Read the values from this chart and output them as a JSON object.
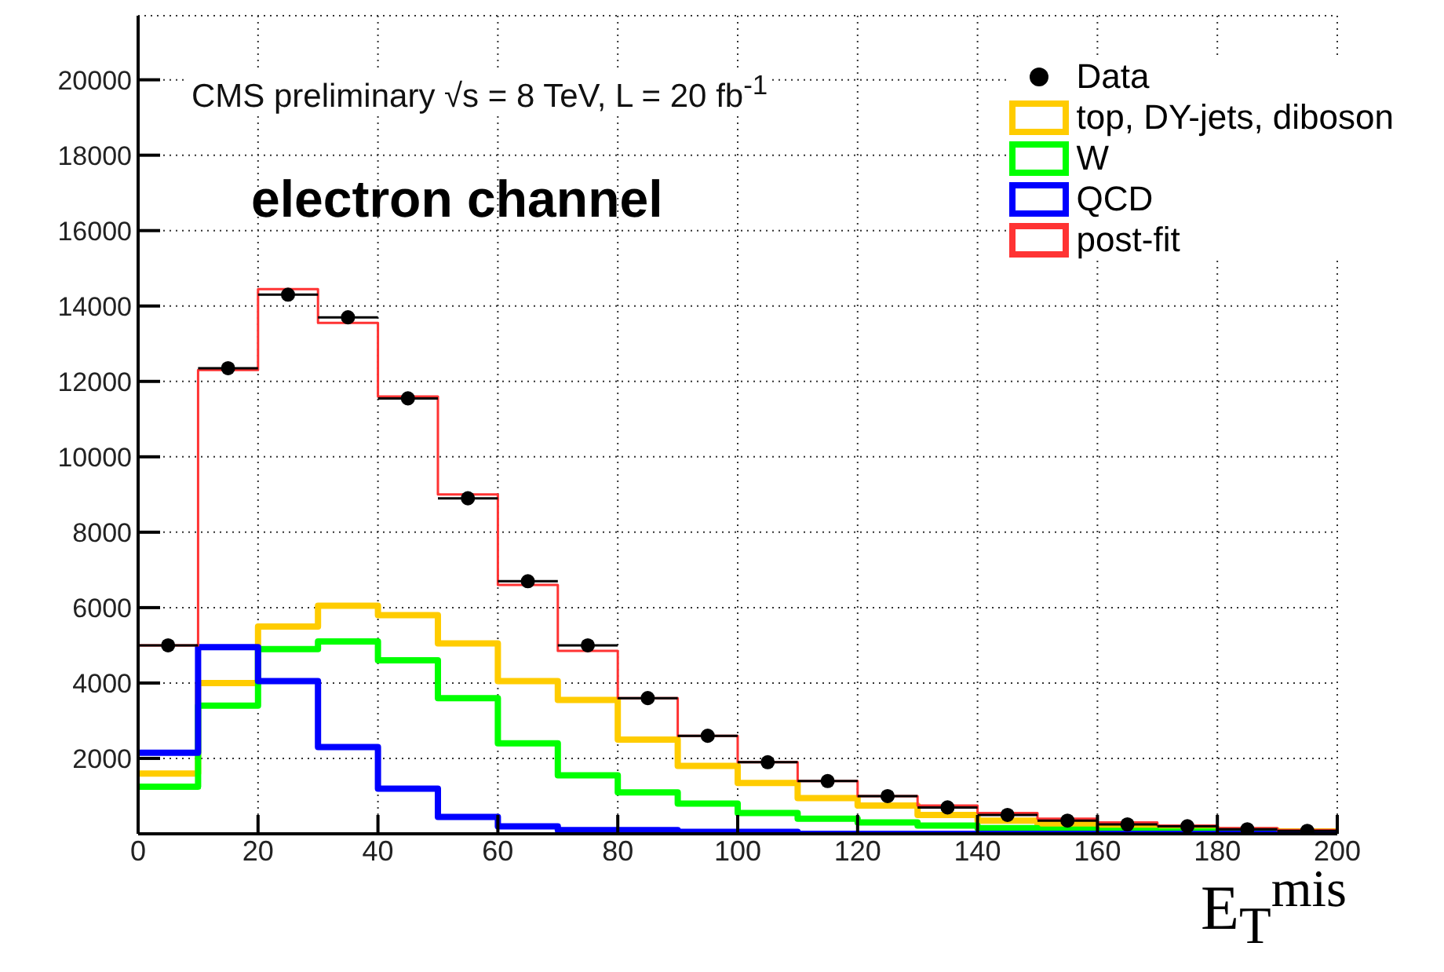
{
  "chart_data": {
    "type": "histogram",
    "xlabel": "E$_{T}$$^{mis}$",
    "annotations": [
      "CMS preliminary √s = 8 TeV, L = 20 fb$^{-1}$",
      "electron channel"
    ],
    "bins": [
      0,
      10,
      20,
      30,
      40,
      50,
      60,
      70,
      80,
      90,
      100,
      110,
      120,
      130,
      140,
      150,
      160,
      170,
      180,
      190,
      200
    ],
    "series": [
      {
        "name": "Data",
        "type": "scatter",
        "color": "#000000",
        "marker": "circle",
        "x": [
          5,
          15,
          25,
          35,
          45,
          55,
          65,
          75,
          85,
          95,
          105,
          115,
          125,
          135,
          145,
          155,
          165,
          175,
          185,
          195
        ],
        "values": [
          5000,
          12350,
          14300,
          13700,
          11550,
          8900,
          6700,
          5000,
          3600,
          2600,
          1900,
          1400,
          1000,
          700,
          500,
          350,
          250,
          200,
          120,
          80
        ],
        "xerrors": [
          5,
          5,
          5,
          5,
          5,
          5,
          5,
          5,
          5,
          5,
          5,
          5,
          5,
          5,
          5,
          5,
          5,
          5,
          5,
          5
        ]
      },
      {
        "name": "top, DY-jets, diboson",
        "color": "#ffcc00",
        "values": [
          1600,
          4000,
          5500,
          6050,
          5800,
          5050,
          4050,
          3550,
          2500,
          1800,
          1350,
          950,
          750,
          500,
          350,
          250,
          180,
          130,
          90,
          60
        ]
      },
      {
        "name": "W",
        "color": "#00ff00",
        "values": [
          1250,
          3400,
          4900,
          5100,
          4600,
          3600,
          2400,
          1550,
          1100,
          800,
          550,
          400,
          300,
          220,
          150,
          110,
          80,
          60,
          40,
          30
        ]
      },
      {
        "name": "QCD",
        "color": "#0000ff",
        "values": [
          2150,
          4950,
          4050,
          2300,
          1200,
          450,
          200,
          100,
          100,
          50,
          50,
          0,
          0,
          0,
          0,
          0,
          0,
          0,
          0,
          0
        ]
      },
      {
        "name": "post-fit",
        "color": "#ff3333",
        "values": [
          5000,
          12300,
          14450,
          13550,
          11600,
          9000,
          6600,
          4850,
          3600,
          2600,
          1900,
          1400,
          1000,
          750,
          550,
          400,
          300,
          220,
          150,
          100
        ]
      }
    ],
    "xlim": [
      0,
      200
    ],
    "xticks": [
      0,
      20,
      40,
      60,
      80,
      100,
      120,
      140,
      160,
      180,
      200
    ],
    "ylim": [
      0,
      21700
    ],
    "yticks": [
      2000,
      4000,
      6000,
      8000,
      10000,
      12000,
      14000,
      16000,
      18000,
      20000
    ],
    "grid": true,
    "legend": "top right"
  }
}
